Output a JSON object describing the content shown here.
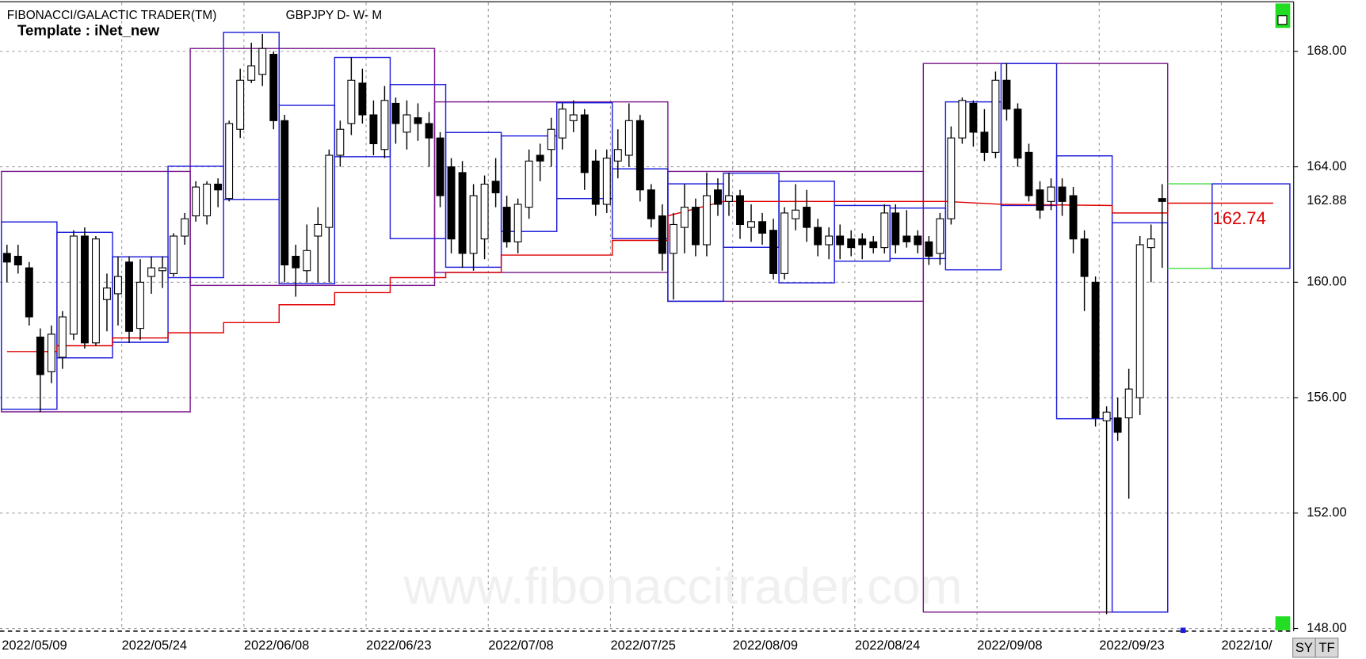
{
  "header": {
    "title": "FIBONACCI/GALACTIC TRADER(TM)",
    "symbol": "GBPJPY D- W- M",
    "template": "Template : iNet_new"
  },
  "watermark": "www.fibonaccitrader.com",
  "buttons": [
    "SY",
    "TF"
  ],
  "chart_data": {
    "type": "candlestick",
    "categories": [
      "2022/05/09",
      null,
      null,
      null,
      null,
      null,
      null,
      null,
      null,
      null,
      null,
      "2022/05/24",
      null,
      null,
      null,
      null,
      null,
      null,
      null,
      null,
      null,
      null,
      "2022/06/08",
      null,
      null,
      null,
      null,
      null,
      null,
      null,
      null,
      null,
      null,
      "2022/06/23",
      null,
      null,
      null,
      null,
      null,
      null,
      null,
      null,
      null,
      null,
      "2022/07/08",
      null,
      null,
      null,
      null,
      null,
      null,
      null,
      null,
      null,
      null,
      "2022/07/25",
      null,
      null,
      null,
      null,
      null,
      null,
      null,
      null,
      null,
      null,
      "2022/08/09",
      null,
      null,
      null,
      null,
      null,
      null,
      null,
      null,
      null,
      null,
      "2022/08/24",
      null,
      null,
      null,
      null,
      null,
      null,
      null,
      null,
      null,
      null,
      "2022/09/08",
      null,
      null,
      null,
      null,
      null,
      null,
      null,
      null,
      null,
      null,
      "2022/09/23",
      null,
      null,
      null,
      null,
      null,
      null,
      null,
      null,
      null,
      null,
      "2022/10/"
    ],
    "open": [
      161.0,
      160.9,
      160.5,
      158.1,
      156.9,
      157.4,
      158.2,
      161.6,
      157.9,
      159.4,
      159.6,
      160.7,
      158.4,
      160.2,
      160.4,
      160.3,
      161.6,
      162.3,
      162.3,
      163.4,
      162.9,
      165.3,
      167.0,
      167.2,
      167.9,
      165.6,
      160.9,
      160.4,
      161.6,
      161.9,
      164.4,
      165.5,
      166.9,
      165.8,
      164.6,
      166.2,
      165.2,
      165.7,
      165.5,
      165.0,
      164.0,
      163.8,
      161.0,
      161.5,
      163.5,
      162.6,
      161.4,
      162.6,
      164.4,
      164.6,
      165.0,
      165.6,
      165.8,
      164.2,
      162.7,
      164.2,
      164.4,
      165.6,
      163.2,
      162.3,
      161.0,
      161.9,
      162.6,
      161.3,
      163.2,
      162.8,
      163.0,
      161.9,
      162.1,
      161.8,
      160.3,
      162.2,
      162.6,
      161.9,
      161.3,
      161.6,
      161.5,
      161.5,
      161.4,
      161.2,
      162.4,
      161.6,
      161.6,
      161.4,
      161.0,
      162.2,
      165.0,
      166.2,
      165.2,
      164.5,
      167.0,
      166.0,
      164.5,
      163.2,
      162.8,
      163.3,
      163.0,
      161.5,
      160.0,
      155.2,
      155.3,
      155.3,
      156.0,
      161.2,
      162.9,
      null,
      null,
      null,
      null,
      null,
      null
    ],
    "high": [
      161.3,
      161.3,
      160.7,
      158.4,
      158.5,
      159.0,
      161.8,
      161.9,
      161.6,
      160.3,
      160.9,
      160.9,
      160.8,
      160.9,
      160.9,
      161.7,
      162.4,
      163.5,
      163.5,
      163.6,
      165.6,
      167.4,
      168.3,
      168.6,
      168.0,
      165.8,
      161.3,
      162.0,
      162.6,
      164.6,
      165.6,
      167.8,
      167.4,
      166.3,
      166.8,
      166.4,
      166.3,
      166.2,
      165.9,
      165.2,
      164.3,
      164.2,
      163.4,
      163.7,
      164.3,
      163.0,
      162.9,
      164.6,
      164.8,
      165.7,
      166.2,
      166.3,
      166.0,
      164.6,
      164.6,
      165.3,
      166.2,
      165.8,
      163.4,
      162.7,
      162.4,
      163.4,
      162.9,
      163.8,
      163.6,
      163.8,
      163.2,
      162.7,
      162.4,
      162.2,
      162.6,
      163.4,
      163.2,
      162.2,
      161.9,
      162.0,
      161.8,
      161.7,
      161.6,
      162.7,
      162.7,
      162.5,
      161.8,
      161.6,
      162.4,
      165.4,
      166.4,
      166.3,
      166.0,
      167.3,
      167.6,
      166.2,
      164.8,
      163.5,
      163.6,
      163.6,
      163.3,
      161.8,
      160.2,
      155.7,
      156.0,
      157.0,
      161.6,
      162.0,
      163.4,
      null,
      null,
      null,
      null,
      null,
      null
    ],
    "low": [
      160.0,
      160.3,
      158.5,
      155.5,
      156.5,
      157.0,
      158.0,
      157.7,
      157.8,
      158.3,
      158.5,
      157.9,
      158.0,
      159.6,
      159.8,
      160.2,
      161.3,
      162.1,
      162.0,
      162.6,
      162.8,
      165.0,
      166.9,
      166.8,
      165.3,
      160.0,
      159.5,
      160.0,
      160.0,
      160.0,
      164.0,
      165.1,
      165.5,
      164.4,
      164.3,
      164.8,
      164.6,
      164.9,
      164.0,
      162.6,
      161.0,
      160.5,
      160.4,
      160.8,
      162.6,
      161.2,
      161.0,
      162.2,
      163.5,
      164.0,
      164.6,
      165.2,
      163.2,
      162.3,
      162.4,
      163.6,
      164.0,
      162.8,
      161.9,
      160.4,
      159.4,
      161.0,
      160.9,
      160.9,
      162.3,
      162.3,
      161.5,
      161.4,
      161.3,
      160.1,
      160.1,
      161.8,
      161.4,
      160.9,
      160.8,
      160.8,
      160.9,
      160.8,
      161.0,
      161.0,
      161.0,
      161.2,
      161.0,
      160.6,
      160.6,
      162.0,
      164.8,
      164.7,
      164.2,
      164.3,
      165.6,
      164.0,
      162.8,
      162.2,
      162.5,
      162.3,
      161.0,
      159.0,
      155.0,
      148.5,
      154.5,
      152.5,
      155.4,
      160.0,
      160.5,
      null,
      null,
      null,
      null,
      null,
      null
    ],
    "close": [
      160.7,
      160.6,
      158.8,
      156.8,
      158.2,
      158.8,
      161.6,
      157.9,
      161.5,
      159.8,
      160.2,
      158.3,
      160.0,
      160.5,
      160.5,
      161.6,
      162.2,
      163.3,
      163.4,
      163.2,
      165.5,
      167.0,
      167.5,
      168.1,
      165.6,
      160.6,
      160.5,
      161.1,
      162.0,
      164.4,
      165.3,
      167.0,
      165.8,
      164.8,
      166.3,
      165.5,
      165.8,
      165.5,
      165.0,
      163.0,
      161.5,
      161.0,
      163.0,
      163.4,
      163.1,
      161.4,
      162.7,
      164.2,
      164.2,
      165.3,
      166.0,
      165.8,
      163.8,
      162.7,
      164.3,
      164.6,
      165.6,
      163.2,
      162.2,
      161.0,
      162.0,
      162.6,
      161.3,
      163.0,
      162.7,
      163.0,
      162.0,
      162.1,
      161.7,
      160.3,
      162.4,
      162.5,
      161.9,
      161.3,
      161.6,
      161.3,
      161.2,
      161.3,
      161.2,
      162.4,
      161.3,
      161.4,
      161.3,
      160.9,
      162.2,
      165.0,
      166.3,
      165.2,
      164.5,
      167.0,
      166.0,
      164.3,
      163.0,
      162.5,
      163.3,
      162.8,
      161.5,
      160.2,
      155.3,
      155.5,
      154.8,
      156.3,
      161.3,
      161.5,
      162.8,
      null,
      null,
      null,
      null,
      null,
      null
    ],
    "monthly_ranges": [
      [
        -0.5,
        16.5,
        163.84,
        155.51
      ],
      [
        16.5,
        38.5,
        168.1,
        159.89
      ],
      [
        38.5,
        59.5,
        166.25,
        160.34
      ],
      [
        59.5,
        82.5,
        163.84,
        159.34
      ],
      [
        82.5,
        104.5,
        167.58,
        148.57
      ]
    ],
    "weekly_ranges": [
      [
        -0.5,
        4.5,
        162.09,
        155.6
      ],
      [
        4.5,
        9.5,
        161.73,
        157.38
      ],
      [
        9.5,
        14.5,
        160.88,
        157.92
      ],
      [
        14.5,
        19.5,
        164.02,
        160.16
      ],
      [
        19.5,
        24.5,
        168.66,
        162.87
      ],
      [
        24.5,
        29.5,
        166.13,
        159.95
      ],
      [
        29.5,
        34.5,
        167.79,
        164.35
      ],
      [
        34.5,
        39.5,
        166.85,
        161.51
      ],
      [
        39.5,
        44.5,
        165.19,
        160.52
      ],
      [
        44.5,
        49.5,
        165.07,
        161.76
      ],
      [
        49.5,
        54.5,
        166.22,
        162.9
      ],
      [
        54.5,
        59.5,
        163.93,
        161.51
      ],
      [
        59.5,
        64.5,
        163.41,
        159.34
      ],
      [
        64.5,
        69.5,
        163.78,
        161.21
      ],
      [
        69.5,
        74.5,
        163.5,
        159.98
      ],
      [
        74.5,
        79.5,
        162.66,
        160.73
      ],
      [
        79.5,
        84.5,
        162.57,
        160.82
      ],
      [
        84.5,
        89.5,
        166.25,
        160.43
      ],
      [
        89.5,
        94.5,
        167.58,
        162.66
      ],
      [
        94.5,
        99.5,
        164.38,
        155.27
      ],
      [
        99.5,
        104.5,
        162.06,
        148.57
      ]
    ],
    "trend_line": {
      "color": "#e00000",
      "x": [
        0,
        4.5,
        4.5,
        9.5,
        9.5,
        14.5,
        14.5,
        19.5,
        19.5,
        24.5,
        24.5,
        29.5,
        29.5,
        34.5,
        34.5,
        39.5,
        39.5,
        44.5,
        44.5,
        54.5,
        54.5,
        59.5,
        59.5,
        64.5,
        84.5,
        89.5,
        99.5,
        99.5,
        104.5,
        104.5,
        114
      ],
      "values": [
        157.6,
        157.6,
        157.8,
        157.8,
        158.07,
        158.07,
        158.25,
        158.25,
        158.6,
        158.6,
        159.22,
        159.22,
        159.64,
        159.64,
        160.16,
        160.16,
        160.34,
        160.34,
        160.94,
        160.94,
        161.45,
        161.45,
        162.3,
        162.8,
        162.8,
        162.7,
        162.66,
        162.4,
        162.4,
        162.74,
        162.74
      ]
    },
    "projection": {
      "start": 104.5,
      "mid": 108.5,
      "end": 115.5,
      "high": 163.41,
      "low": 160.48
    },
    "target": 162.74,
    "last_price": 162.88,
    "monthly_color": "#7a1a8c",
    "weekly_color": "#1c1cdc",
    "band_color": "#5ee05e",
    "ylim": [
      147.94,
      169.69
    ],
    "yticks": [
      {
        "value": 148,
        "label": "148.00"
      },
      {
        "value": 152,
        "label": "152.00"
      },
      {
        "value": 156,
        "label": "156.00"
      },
      {
        "value": 160,
        "label": "160.00"
      },
      {
        "value": 164,
        "label": "164.00"
      },
      {
        "value": 168,
        "label": "168.00"
      }
    ],
    "grid": true
  }
}
